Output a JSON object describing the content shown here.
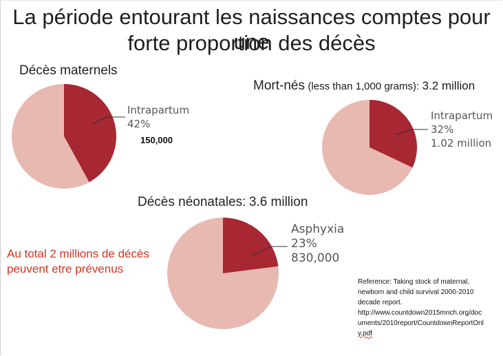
{
  "title": {
    "line1": "La période entourant les naissances comptes pour une",
    "line2": "forte proportion des décès"
  },
  "colors": {
    "dark": "#a72733",
    "light": "#e7b9b1",
    "red_text": "#d6331f"
  },
  "chart_data": [
    {
      "type": "pie",
      "title": "Décès maternels",
      "slices": [
        {
          "label": "Intrapartum",
          "value": 42
        },
        {
          "label": "",
          "value": 58
        }
      ],
      "annotation": {
        "label": "Intrapartum",
        "percent": "42%",
        "count": "150,000"
      }
    },
    {
      "type": "pie",
      "title": "Mort-nés",
      "title_note": "(less than 1,000 grams):",
      "title_total": "3.2 million",
      "slices": [
        {
          "label": "Intrapartum",
          "value": 32
        },
        {
          "label": "",
          "value": 68
        }
      ],
      "annotation": {
        "label": "Intrapartum",
        "percent": "32%",
        "count": "1.02 million"
      }
    },
    {
      "type": "pie",
      "title": "Décès néonatales:",
      "title_total": "3.6 million",
      "slices": [
        {
          "label": "Asphyxia",
          "value": 23
        },
        {
          "label": "",
          "value": 77
        }
      ],
      "annotation": {
        "label": "Asphyxia",
        "percent": "23%",
        "count": "830,000"
      }
    }
  ],
  "callout": {
    "line1": "Au total 2 millions de décès",
    "line2": "peuvent etre prévenus"
  },
  "reference": {
    "line1": "Reference: Taking stock of maternal,",
    "line2": "newborn and child survival 2000-2010",
    "line3": "decade report.",
    "line4": "http://www.countdown2015mnch.org/doc",
    "line5": "uments/2010report/CountdownReportOnl",
    "line6": "y.pdf"
  }
}
